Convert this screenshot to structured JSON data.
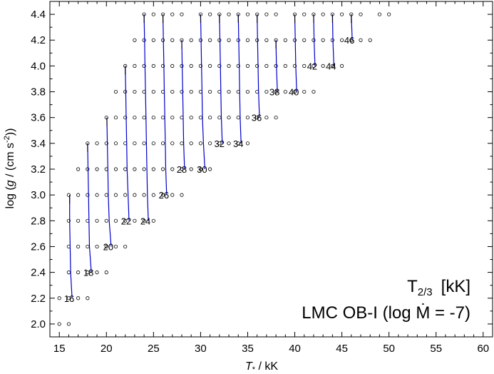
{
  "chart_data": {
    "type": "scatter",
    "xlabel_symbol": "T",
    "xlabel_subscript": "*",
    "xlabel_unit": " / kK",
    "ylabel_parts": [
      "log (",
      "g",
      " / (cm s",
      "-2",
      "))"
    ],
    "annotation_line1_main": "T",
    "annotation_line1_sub": "2/3",
    "annotation_line1_unit": "[kK]",
    "annotation_line2": "LMC OB-I (log Ṁ = -7)",
    "xlim": [
      14,
      61
    ],
    "ylim": [
      1.9,
      4.5
    ],
    "xticks": [
      15,
      20,
      25,
      30,
      35,
      40,
      45,
      50,
      55,
      60
    ],
    "yticks": [
      2.0,
      2.2,
      2.4,
      2.6,
      2.8,
      3.0,
      3.2,
      3.4,
      3.6,
      3.8,
      4.0,
      4.2,
      4.4
    ],
    "ytick_labels": [
      "2.0",
      "2.2",
      "2.4",
      "2.6",
      "2.8",
      "3.0",
      "3.2",
      "3.4",
      "3.6",
      "3.8",
      "4.0",
      "4.2",
      "4.4"
    ],
    "grid_rows": [
      {
        "logg": 4.4,
        "teff": [
          24,
          25,
          26,
          27,
          28,
          30,
          31,
          32,
          33,
          34,
          35,
          36,
          37,
          38,
          40,
          41,
          42,
          43,
          44,
          45,
          46,
          47,
          49,
          50
        ]
      },
      {
        "logg": 4.2,
        "teff": [
          23,
          24,
          25,
          26,
          27,
          28,
          29,
          30,
          31,
          32,
          33,
          34,
          35,
          36,
          37,
          38,
          39,
          40,
          41,
          42,
          43,
          44,
          45,
          46,
          47,
          48
        ]
      },
      {
        "logg": 4.0,
        "teff": [
          22,
          23,
          24,
          25,
          26,
          27,
          28,
          29,
          30,
          31,
          32,
          33,
          34,
          35,
          36,
          37,
          38,
          39,
          40,
          41,
          42,
          43,
          44,
          45
        ]
      },
      {
        "logg": 3.8,
        "teff": [
          21,
          22,
          23,
          24,
          25,
          26,
          27,
          28,
          29,
          30,
          31,
          32,
          33,
          34,
          35,
          36,
          37,
          38,
          39,
          40,
          41,
          42
        ]
      },
      {
        "logg": 3.6,
        "teff": [
          20,
          21,
          22,
          23,
          24,
          25,
          26,
          27,
          28,
          29,
          30,
          31,
          32,
          33,
          34,
          35,
          36,
          37,
          38
        ]
      },
      {
        "logg": 3.4,
        "teff": [
          18,
          19,
          20,
          21,
          22,
          23,
          24,
          25,
          26,
          27,
          28,
          29,
          30,
          31,
          32,
          33,
          34,
          35
        ]
      },
      {
        "logg": 3.2,
        "teff": [
          17,
          18,
          19,
          20,
          21,
          22,
          23,
          24,
          25,
          26,
          27,
          28,
          29,
          30,
          31
        ]
      },
      {
        "logg": 3.0,
        "teff": [
          16,
          17,
          18,
          19,
          20,
          21,
          22,
          23,
          24,
          25,
          26,
          27,
          28
        ]
      },
      {
        "logg": 2.8,
        "teff": [
          16,
          17,
          18,
          19,
          20,
          21,
          22,
          23,
          24,
          25
        ]
      },
      {
        "logg": 2.6,
        "teff": [
          16,
          17,
          18,
          19,
          20,
          21,
          22
        ]
      },
      {
        "logg": 2.4,
        "teff": [
          16,
          17,
          18,
          19,
          20
        ]
      },
      {
        "logg": 2.2,
        "teff": [
          15,
          16,
          17,
          18
        ]
      },
      {
        "logg": 2.0,
        "teff": [
          15,
          16
        ]
      }
    ],
    "isocontours": [
      {
        "label": "16",
        "points": [
          [
            16.1,
            3.0
          ],
          [
            16.1,
            2.8
          ],
          [
            16.15,
            2.6
          ],
          [
            16.2,
            2.4
          ],
          [
            16.35,
            2.2
          ]
        ]
      },
      {
        "label": "18",
        "points": [
          [
            18.0,
            3.4
          ],
          [
            18.05,
            3.2
          ],
          [
            18.1,
            3.0
          ],
          [
            18.15,
            2.8
          ],
          [
            18.2,
            2.6
          ],
          [
            18.4,
            2.4
          ]
        ]
      },
      {
        "label": "20",
        "points": [
          [
            20.05,
            3.6
          ],
          [
            20.1,
            3.4
          ],
          [
            20.15,
            3.2
          ],
          [
            20.2,
            3.0
          ],
          [
            20.3,
            2.8
          ],
          [
            20.5,
            2.6
          ]
        ]
      },
      {
        "label": "22",
        "points": [
          [
            22.0,
            4.0
          ],
          [
            22.05,
            3.8
          ],
          [
            22.1,
            3.6
          ],
          [
            22.15,
            3.4
          ],
          [
            22.2,
            3.2
          ],
          [
            22.3,
            3.0
          ],
          [
            22.4,
            2.8
          ]
        ]
      },
      {
        "label": "24",
        "points": [
          [
            24.0,
            4.4
          ],
          [
            24.05,
            4.2
          ],
          [
            24.1,
            4.0
          ],
          [
            24.15,
            3.8
          ],
          [
            24.2,
            3.6
          ],
          [
            24.25,
            3.4
          ],
          [
            24.3,
            3.2
          ],
          [
            24.35,
            3.0
          ],
          [
            24.45,
            2.8
          ]
        ]
      },
      {
        "label": "26",
        "points": [
          [
            26.0,
            4.4
          ],
          [
            26.05,
            4.2
          ],
          [
            26.1,
            4.0
          ],
          [
            26.15,
            3.8
          ],
          [
            26.2,
            3.6
          ],
          [
            26.25,
            3.4
          ],
          [
            26.3,
            3.2
          ],
          [
            26.4,
            3.0
          ]
        ]
      },
      {
        "label": "28",
        "points": [
          [
            28.0,
            4.2
          ],
          [
            28.05,
            4.0
          ],
          [
            28.1,
            3.8
          ],
          [
            28.15,
            3.6
          ],
          [
            28.2,
            3.4
          ],
          [
            28.3,
            3.2
          ]
        ]
      },
      {
        "label": "30",
        "points": [
          [
            30.0,
            4.4
          ],
          [
            30.05,
            4.2
          ],
          [
            30.1,
            4.0
          ],
          [
            30.15,
            3.8
          ],
          [
            30.2,
            3.6
          ],
          [
            30.3,
            3.4
          ],
          [
            30.45,
            3.2
          ]
        ]
      },
      {
        "label": "32",
        "points": [
          [
            32.0,
            4.4
          ],
          [
            32.05,
            4.2
          ],
          [
            32.1,
            4.0
          ],
          [
            32.15,
            3.8
          ],
          [
            32.2,
            3.6
          ],
          [
            32.3,
            3.4
          ]
        ]
      },
      {
        "label": "34",
        "points": [
          [
            34.0,
            4.4
          ],
          [
            34.05,
            4.2
          ],
          [
            34.1,
            4.0
          ],
          [
            34.15,
            3.8
          ],
          [
            34.2,
            3.6
          ],
          [
            34.3,
            3.4
          ]
        ]
      },
      {
        "label": "36",
        "points": [
          [
            36.0,
            4.4
          ],
          [
            36.05,
            4.2
          ],
          [
            36.1,
            4.0
          ],
          [
            36.15,
            3.8
          ],
          [
            36.25,
            3.6
          ]
        ]
      },
      {
        "label": "38",
        "points": [
          [
            38.0,
            4.2
          ],
          [
            38.05,
            4.0
          ],
          [
            38.15,
            3.8
          ]
        ]
      },
      {
        "label": "40",
        "points": [
          [
            40.0,
            4.4
          ],
          [
            40.05,
            4.2
          ],
          [
            40.1,
            4.0
          ],
          [
            40.2,
            3.8
          ]
        ]
      },
      {
        "label": "42",
        "points": [
          [
            42.0,
            4.4
          ],
          [
            42.05,
            4.2
          ],
          [
            42.15,
            4.0
          ]
        ]
      },
      {
        "label": "44",
        "points": [
          [
            44.0,
            4.4
          ],
          [
            44.05,
            4.2
          ],
          [
            44.15,
            4.0
          ]
        ]
      },
      {
        "label": "46",
        "points": [
          [
            46.0,
            4.4
          ],
          [
            46.1,
            4.2
          ]
        ]
      }
    ],
    "contour_color": "#0000cc",
    "contour_tail_color": "#000000",
    "marker_style": "open-circle",
    "grid": false
  }
}
